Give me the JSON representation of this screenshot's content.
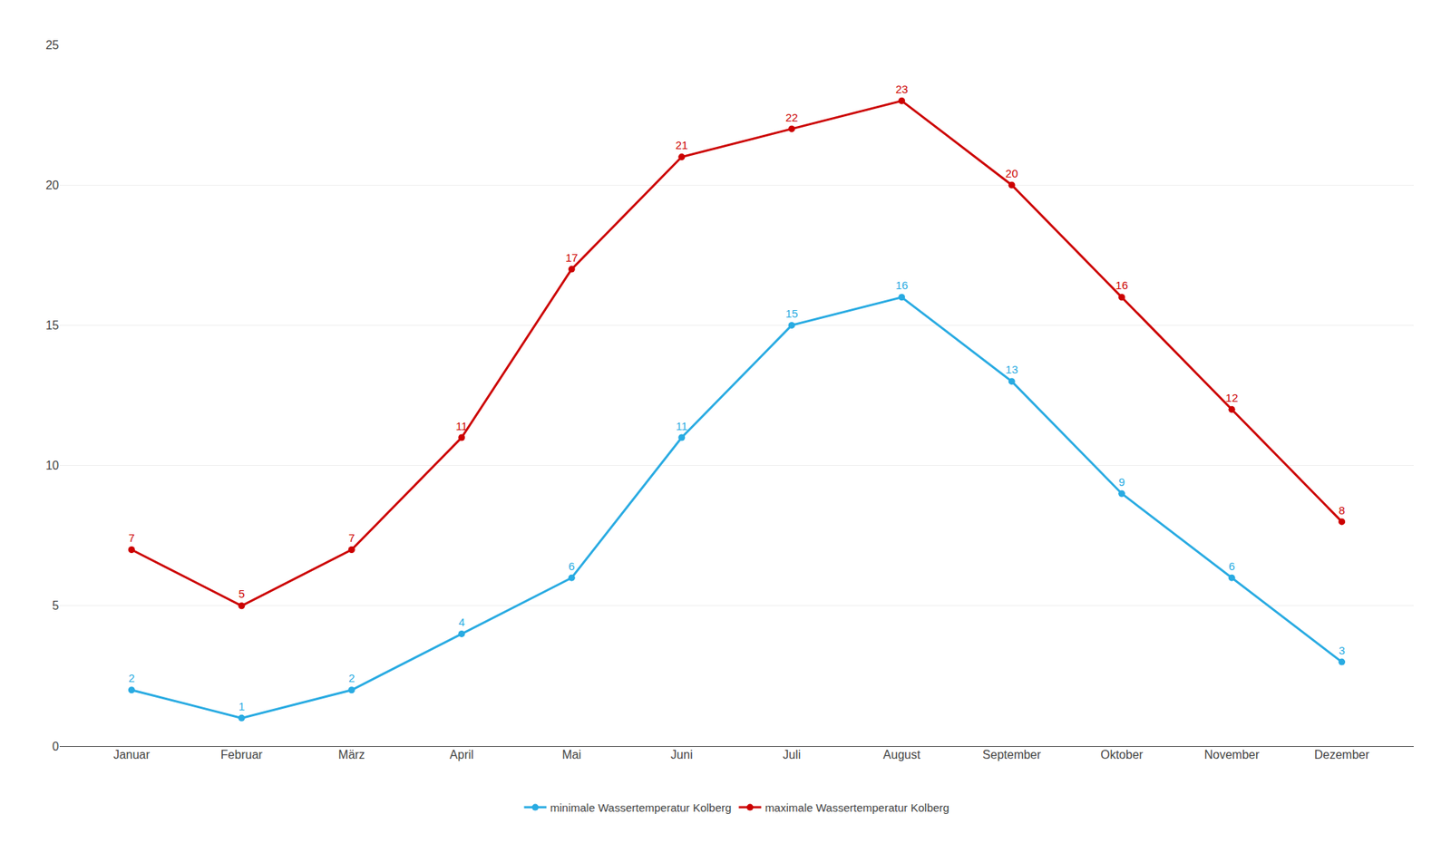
{
  "chart_data": {
    "type": "line",
    "categories": [
      "Januar",
      "Februar",
      "März",
      "April",
      "Mai",
      "Juni",
      "Juli",
      "August",
      "September",
      "Oktober",
      "November",
      "Dezember"
    ],
    "series": [
      {
        "name": "minimale Wassertemperatur Kolberg",
        "color": "#29ABE2",
        "values": [
          2,
          1,
          2,
          4,
          6,
          11,
          15,
          16,
          13,
          9,
          6,
          3
        ]
      },
      {
        "name": "maximale Wassertemperatur Kolberg",
        "color": "#CC0000",
        "values": [
          7,
          5,
          7,
          11,
          17,
          21,
          22,
          23,
          20,
          16,
          12,
          8
        ]
      }
    ],
    "ylim": [
      0,
      25
    ],
    "yticks": [
      0,
      5,
      10,
      15,
      20,
      25
    ],
    "grid": true,
    "legend": "bottom",
    "data_labels": true,
    "marker": "circle",
    "line_style": "solid"
  }
}
